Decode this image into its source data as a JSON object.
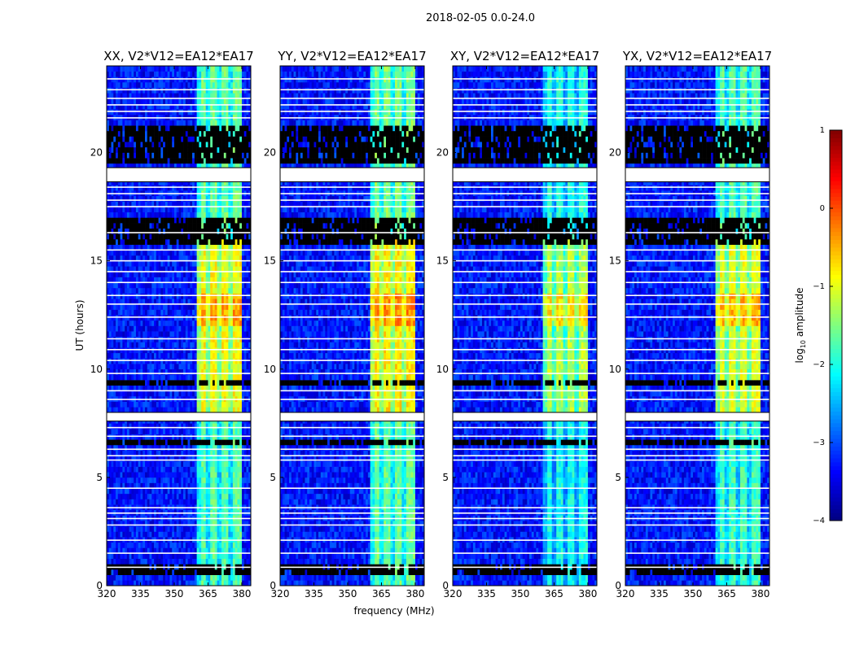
{
  "chart_data": {
    "type": "heatmap",
    "title": "2018-02-05 0.0-24.0",
    "xlabel": "frequency (MHz)",
    "ylabel": "UT (hours)",
    "xlim": [
      320,
      384
    ],
    "ylim": [
      0,
      24
    ],
    "xticks": [
      320,
      335,
      350,
      365,
      380
    ],
    "yticks": [
      0,
      5,
      10,
      15,
      20
    ],
    "panels": [
      {
        "title": "XX, V2*V12=EA12*EA17",
        "gain": 0.0
      },
      {
        "title": "YY, V2*V12=EA12*EA17",
        "gain": 0.1
      },
      {
        "title": "XY, V2*V12=EA12*EA17",
        "gain": -0.35
      },
      {
        "title": "YX, V2*V12=EA12*EA17",
        "gain": -0.1
      }
    ],
    "colorbar": {
      "label_prefix": "log",
      "label_sub": "10",
      "label_suffix": " amplitude",
      "clim": [
        -4,
        1
      ],
      "ticks": [
        "1",
        "0",
        "−1",
        "−2",
        "−3",
        "−4"
      ],
      "tick_values": [
        1,
        0,
        -1,
        -2,
        -3,
        -4
      ],
      "colormap": "jet"
    },
    "model": {
      "background_level": -3.3,
      "band_mhz": [
        360.5,
        380
      ],
      "band_dips_mhz": [
        365,
        370,
        375
      ],
      "band_levels": [
        {
          "hours": [
            0,
            8
          ],
          "level": -1.7
        },
        {
          "hours": [
            8,
            16
          ],
          "level": -0.9
        },
        {
          "hours": [
            12,
            13.5
          ],
          "level": -0.4
        },
        {
          "hours": [
            16,
            24
          ],
          "level": -1.6
        }
      ],
      "flagged_white_hours": [
        [
          18.65,
          19.3
        ],
        [
          7.6,
          8.0
        ]
      ],
      "flagged_black_hours": [
        [
          19.5,
          21.3
        ],
        [
          15.8,
          17.0
        ],
        [
          6.55,
          6.8
        ],
        [
          0.5,
          0.9
        ],
        [
          9.2,
          9.6
        ]
      ],
      "white_line_hours": [
        0.85,
        1.5,
        2.1,
        2.8,
        3.1,
        3.35,
        3.6,
        4.5,
        5.8,
        6.0,
        6.3,
        6.9,
        7.3,
        8.6,
        9.0,
        9.8,
        10.4,
        10.9,
        11.4,
        12.4,
        13.0,
        13.4,
        14.0,
        14.5,
        15.0,
        15.5,
        16.3,
        17.5,
        17.8,
        18.1,
        18.4,
        21.6,
        21.9,
        22.2,
        22.5,
        22.9,
        23.4
      ]
    }
  }
}
